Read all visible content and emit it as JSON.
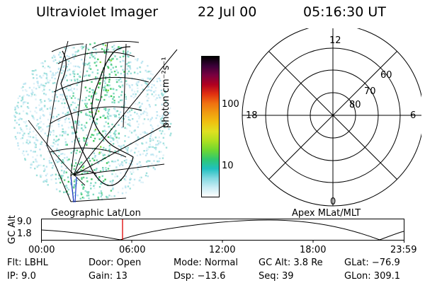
{
  "header": {
    "instrument": "Ultraviolet Imager",
    "date": "22 Jul 00",
    "time": "05:16:30 UT"
  },
  "geo_map": {
    "caption": "Geographic Lat/Lon"
  },
  "polar_plot": {
    "caption": "Apex MLat/MLT",
    "mlt_labels": [
      "12",
      "18",
      "6",
      "0"
    ],
    "lat_labels": [
      "60",
      "70",
      "80"
    ]
  },
  "colorbar": {
    "unit_label": "photon cm⁻²s⁻¹",
    "tick_labels": [
      "100",
      "10"
    ],
    "colors": [
      "#000000",
      "#3a0038",
      "#7a0040",
      "#b00020",
      "#e03010",
      "#f07010",
      "#f09b10",
      "#f0c010",
      "#e0e020",
      "#b0e020",
      "#70d830",
      "#30c870",
      "#20c0c0",
      "#80d8e0",
      "#c8ecf4",
      "#ffffff"
    ]
  },
  "altitude_plot": {
    "ylabel": "GC Alt",
    "y_ticks": [
      "9.0",
      "1.8"
    ],
    "x_ticks": [
      "00:00",
      "06:00",
      "12:00",
      "18:00",
      "23:59"
    ],
    "current_time_color": "#dd0000"
  },
  "status": {
    "filter": "Flt: LBHL",
    "ip": "IP:  9.0",
    "door": "Door: Open",
    "gain": "Gain: 13",
    "mode": "Mode: Normal",
    "dsp": "Dsp:  −13.6",
    "gc_alt": "GC Alt: 3.8 Re",
    "seq": "Seq: 39",
    "glat": "GLat:  −76.9",
    "glon": "GLon: 309.1"
  }
}
